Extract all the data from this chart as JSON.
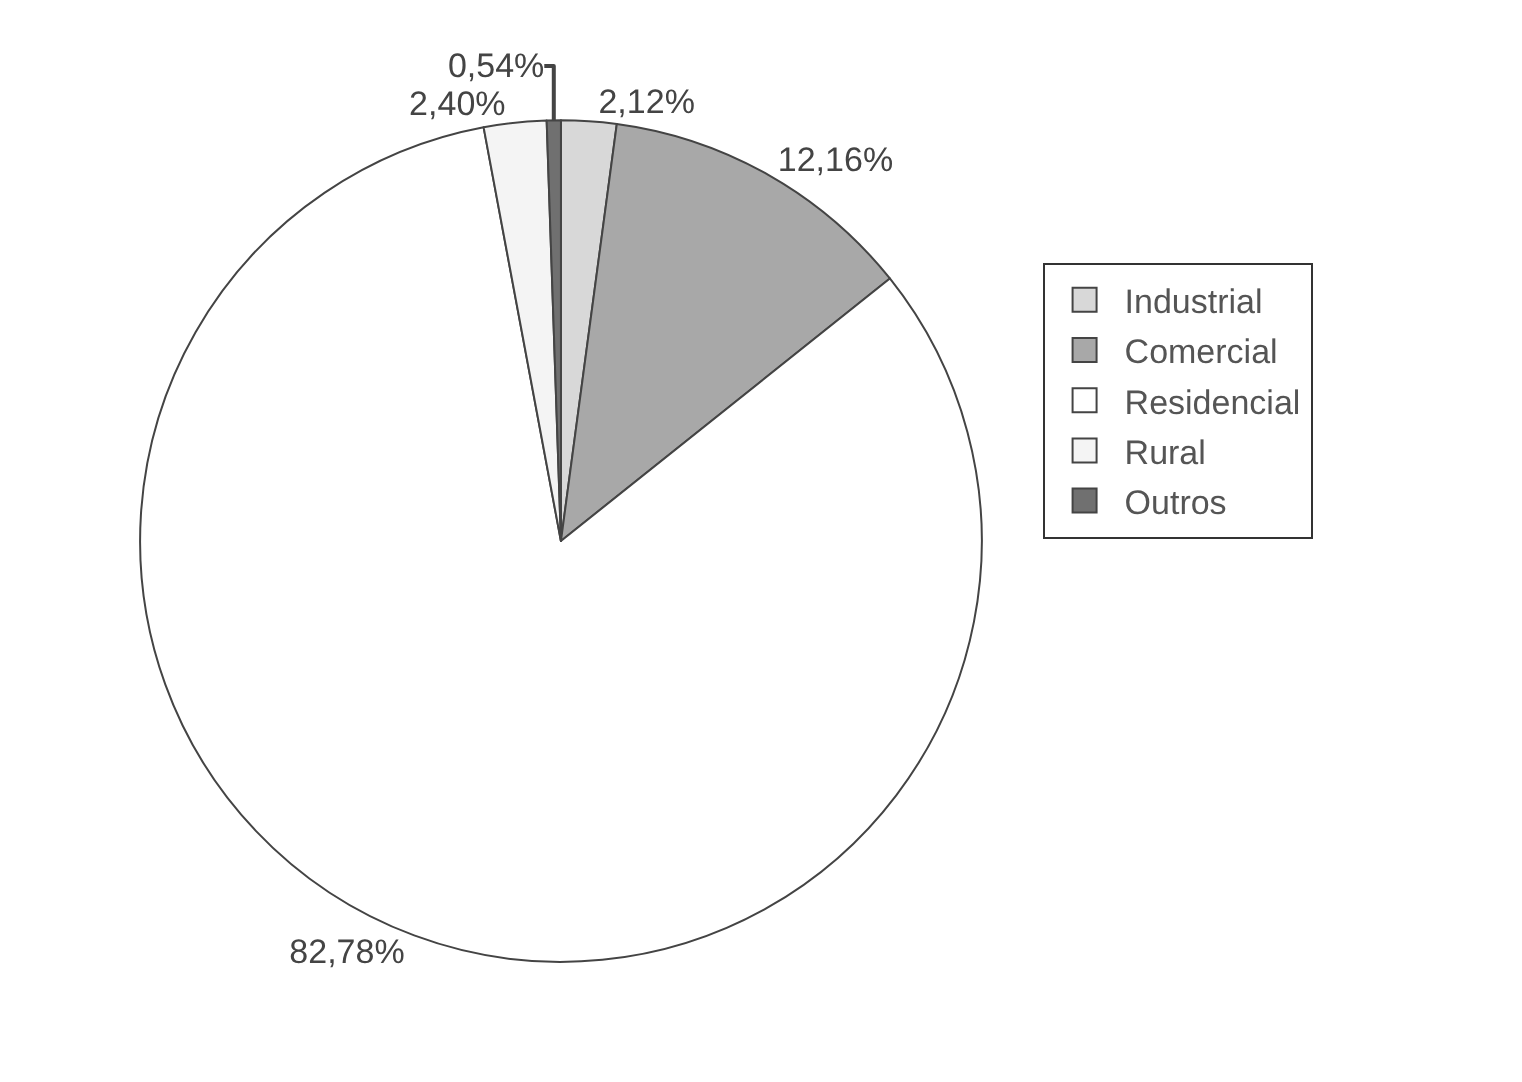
{
  "chart_data": {
    "type": "pie",
    "categories": [
      "Industrial",
      "Comercial",
      "Residencial",
      "Rural",
      "Outros"
    ],
    "values": [
      2.12,
      12.16,
      82.78,
      2.4,
      0.54
    ],
    "value_labels": [
      "2,12%",
      "12,16%",
      "82,78%",
      "2,40%",
      "0,54%"
    ],
    "colors": [
      "#d8d8d8",
      "#a8a8a8",
      "#ffffff",
      "#f4f4f4",
      "#707070"
    ],
    "legend": "right"
  }
}
